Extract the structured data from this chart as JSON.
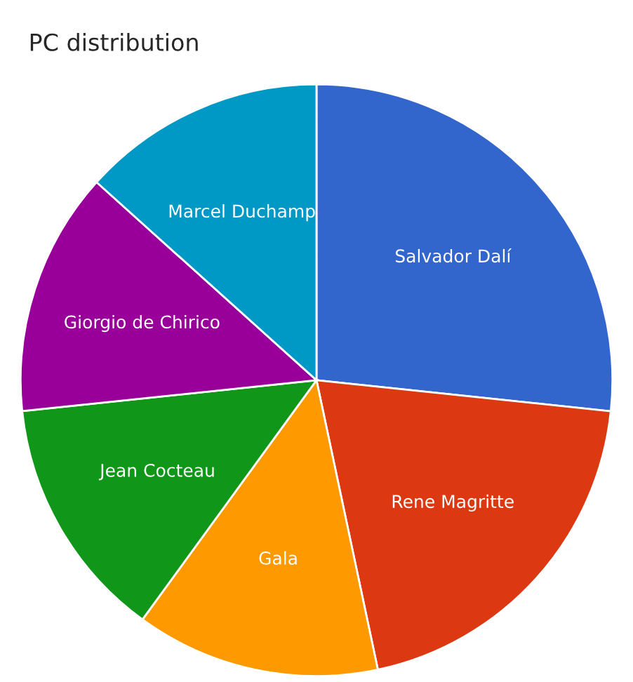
{
  "chart_data": {
    "type": "pie",
    "title": "PC distribution",
    "categories": [
      "Salvador Dalí",
      "Rene Magritte",
      "Gala",
      "Jean Cocteau",
      "Giorgio de Chirico",
      "Marcel Duchamp"
    ],
    "values": [
      26.67,
      20,
      13.33,
      13.33,
      13.33,
      13.33
    ],
    "colors": [
      "#3366cc",
      "#dc3912",
      "#ff9900",
      "#109618",
      "#990099",
      "#0099c6"
    ],
    "legend": false
  }
}
